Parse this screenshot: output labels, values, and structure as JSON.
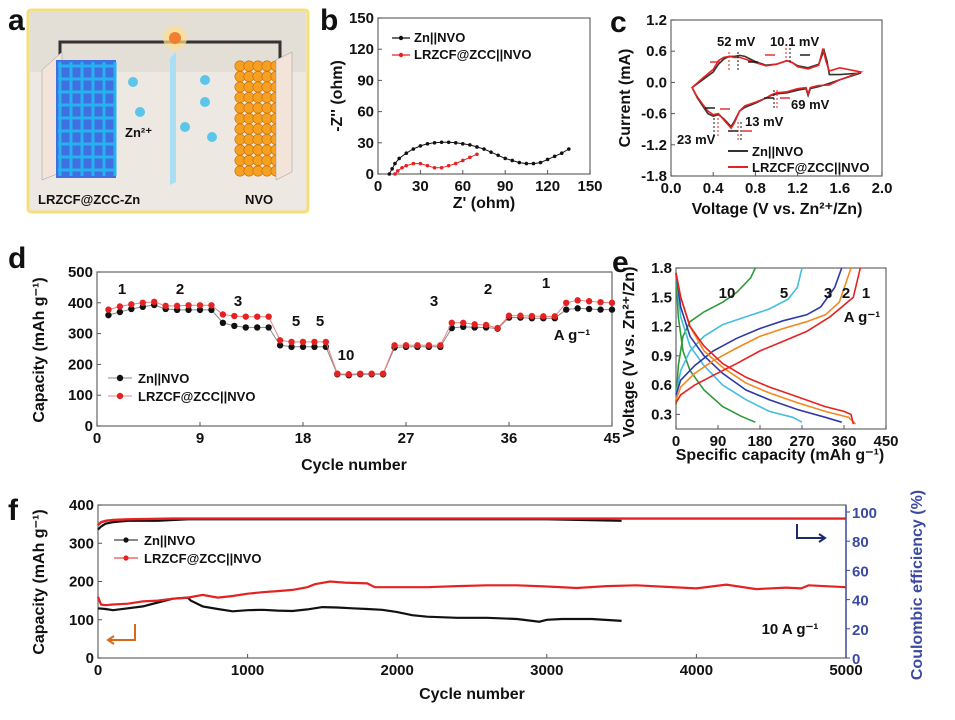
{
  "figure": {
    "panels": [
      "a",
      "b",
      "c",
      "d",
      "e",
      "f"
    ]
  },
  "panel_a": {
    "letter": "a",
    "left_label": "LRZCF@ZCC-Zn",
    "right_label": "NVO",
    "ion_label": "Zn²⁺",
    "colors": {
      "anode": "#3a6fd8",
      "cathode": "#f5a020",
      "background": "#efeae4",
      "border": "#f5e38a"
    }
  },
  "chart_data": [
    {
      "id": "b",
      "letter": "b",
      "type": "scatter",
      "title": "",
      "xlabel": "Z' (ohm)",
      "ylabel": "-Z'' (ohm)",
      "xlim": [
        0,
        150
      ],
      "ylim": [
        0,
        150
      ],
      "xticks": [
        "0",
        "30",
        "60",
        "90",
        "120",
        "150"
      ],
      "yticks": [
        "0",
        "30",
        "60",
        "90",
        "120",
        "150"
      ],
      "legend_position": "top-left",
      "series": [
        {
          "name": "Zn||NVO",
          "color": "#111111",
          "x": [
            8,
            10,
            12,
            15,
            20,
            25,
            30,
            35,
            40,
            45,
            50,
            55,
            60,
            65,
            70,
            75,
            80,
            85,
            90,
            95,
            100,
            105,
            110,
            115,
            120,
            125,
            130,
            135
          ],
          "y": [
            0,
            5,
            10,
            15,
            20,
            24,
            27,
            29,
            30,
            30.5,
            30.5,
            30,
            29,
            28,
            26,
            24,
            21,
            18,
            15,
            13,
            11,
            10,
            10,
            11,
            14,
            17,
            20,
            24
          ]
        },
        {
          "name": "LRZCF@ZCC||NVO",
          "color": "#e52222",
          "x": [
            12,
            14,
            17,
            20,
            25,
            30,
            35,
            40,
            45,
            50,
            55,
            60,
            65,
            70
          ],
          "y": [
            0,
            3,
            6,
            8,
            10,
            10,
            8,
            6,
            6,
            8,
            10,
            13,
            16,
            19
          ]
        }
      ]
    },
    {
      "id": "c",
      "letter": "c",
      "type": "line",
      "xlabel": "Voltage (V vs. Zn²⁺/Zn)",
      "ylabel": "Current (mA)",
      "xlim": [
        0.0,
        2.0
      ],
      "ylim": [
        -1.8,
        1.2
      ],
      "xticks": [
        "0.0",
        "0.4",
        "0.8",
        "1.2",
        "1.6",
        "2.0"
      ],
      "yticks": [
        "-1.8",
        "-1.2",
        "-0.6",
        "0.0",
        "0.6",
        "1.2"
      ],
      "legend_position": "bottom-center",
      "annotations": [
        "52 mV",
        "10.1 mV",
        "69 mV",
        "13 mV",
        "23 mV"
      ],
      "series": [
        {
          "name": "Zn||NVO",
          "color": "#333333",
          "x": [
            0.2,
            0.3,
            0.4,
            0.45,
            0.5,
            0.55,
            0.6,
            0.65,
            0.7,
            0.8,
            0.9,
            1.0,
            1.1,
            1.15,
            1.2,
            1.3,
            1.4,
            1.45,
            1.48,
            1.5,
            1.6,
            1.8,
            1.6,
            1.5,
            1.4,
            1.32,
            1.3,
            1.28,
            1.2,
            1.1,
            1.0,
            0.95,
            0.9,
            0.8,
            0.7,
            0.65,
            0.6,
            0.57,
            0.5,
            0.45,
            0.4,
            0.35,
            0.3,
            0.25,
            0.2
          ],
          "y": [
            -0.1,
            0.05,
            0.2,
            0.35,
            0.45,
            0.5,
            0.5,
            0.52,
            0.5,
            0.4,
            0.33,
            0.35,
            0.42,
            0.38,
            0.32,
            0.28,
            0.35,
            0.62,
            0.4,
            0.15,
            0.15,
            0.18,
            0.05,
            -0.02,
            -0.08,
            -0.12,
            -0.25,
            -0.12,
            -0.15,
            -0.2,
            -0.22,
            -0.25,
            -0.3,
            -0.4,
            -0.48,
            -0.55,
            -0.75,
            -0.85,
            -0.7,
            -0.62,
            -0.65,
            -0.6,
            -0.45,
            -0.3,
            -0.1
          ]
        },
        {
          "name": "LRZCF@ZCC||NVO",
          "color": "#e52222",
          "x": [
            0.2,
            0.3,
            0.4,
            0.45,
            0.5,
            0.55,
            0.6,
            0.65,
            0.7,
            0.8,
            0.9,
            1.0,
            1.1,
            1.15,
            1.2,
            1.3,
            1.4,
            1.44,
            1.47,
            1.5,
            1.6,
            1.8,
            1.6,
            1.5,
            1.4,
            1.32,
            1.3,
            1.28,
            1.2,
            1.1,
            1.0,
            0.95,
            0.9,
            0.8,
            0.7,
            0.65,
            0.6,
            0.57,
            0.5,
            0.45,
            0.4,
            0.35,
            0.3,
            0.25,
            0.2
          ],
          "y": [
            -0.1,
            0.08,
            0.25,
            0.42,
            0.48,
            0.5,
            0.48,
            0.48,
            0.45,
            0.38,
            0.32,
            0.35,
            0.42,
            0.38,
            0.3,
            0.26,
            0.33,
            0.65,
            0.4,
            0.22,
            0.28,
            0.2,
            0.05,
            -0.05,
            -0.06,
            -0.1,
            -0.22,
            -0.1,
            -0.12,
            -0.18,
            -0.2,
            -0.24,
            -0.3,
            -0.38,
            -0.45,
            -0.55,
            -0.78,
            -0.88,
            -0.72,
            -0.6,
            -0.62,
            -0.55,
            -0.42,
            -0.28,
            -0.1
          ]
        }
      ]
    },
    {
      "id": "d",
      "letter": "d",
      "type": "line",
      "xlabel": "Cycle number",
      "ylabel": "Capacity (mAh g⁻¹)",
      "xlim": [
        0,
        45
      ],
      "ylim": [
        0,
        500
      ],
      "xticks": [
        "0",
        "9",
        "18",
        "27",
        "36",
        "45"
      ],
      "yticks": [
        "0",
        "100",
        "200",
        "300",
        "400",
        "500"
      ],
      "legend_position": "bottom-left",
      "rate_labels": [
        "1",
        "2",
        "3",
        "5",
        "10",
        "5",
        "3",
        "2",
        "1"
      ],
      "unit_label": "A g⁻¹",
      "x": [
        1,
        2,
        3,
        4,
        5,
        6,
        7,
        8,
        9,
        10,
        11,
        12,
        13,
        14,
        15,
        16,
        17,
        18,
        19,
        20,
        21,
        22,
        23,
        24,
        25,
        26,
        27,
        28,
        29,
        30,
        31,
        32,
        33,
        34,
        35,
        36,
        37,
        38,
        39,
        40,
        41,
        42,
        43,
        44,
        45
      ],
      "series": [
        {
          "name": "Zn||NVO",
          "color": "#111111",
          "values": [
            360,
            370,
            380,
            387,
            393,
            380,
            377,
            377,
            377,
            377,
            335,
            325,
            320,
            320,
            320,
            262,
            257,
            257,
            257,
            257,
            168,
            165,
            168,
            168,
            168,
            255,
            257,
            257,
            257,
            257,
            318,
            322,
            320,
            320,
            316,
            352,
            352,
            350,
            350,
            350,
            378,
            382,
            380,
            378,
            378
          ]
        },
        {
          "name": "LRZCF@ZCC||NVO",
          "color": "#e52222",
          "values": [
            378,
            388,
            395,
            400,
            403,
            390,
            390,
            392,
            392,
            392,
            362,
            357,
            355,
            355,
            355,
            278,
            273,
            273,
            273,
            273,
            170,
            168,
            170,
            170,
            170,
            262,
            262,
            262,
            262,
            262,
            335,
            335,
            330,
            328,
            318,
            358,
            358,
            357,
            356,
            356,
            400,
            408,
            405,
            402,
            400
          ]
        }
      ]
    },
    {
      "id": "e",
      "letter": "e",
      "type": "line",
      "xlabel": "Specific capacity (mAh g⁻¹)",
      "ylabel": "Voltage (V vs. Zn²⁺/Zn)",
      "xlim": [
        0,
        450
      ],
      "ylim": [
        0.2,
        1.8
      ],
      "xticks": [
        "0",
        "90",
        "180",
        "270",
        "360",
        "450"
      ],
      "yticks": [
        "0.3",
        "0.6",
        "0.9",
        "1.2",
        "1.5",
        "1.8"
      ],
      "rate_labels": [
        "10",
        "5",
        "3",
        "2",
        "1"
      ],
      "unit_label": "A g⁻¹",
      "series": [
        {
          "name": "10",
          "color": "#2e9a3a",
          "charge_x": [
            0,
            5,
            15,
            30,
            60,
            100,
            130,
            160,
            170
          ],
          "charge_y": [
            0.4,
            0.8,
            1.1,
            1.25,
            1.35,
            1.45,
            1.55,
            1.7,
            1.8
          ],
          "discharge_x": [
            0,
            5,
            15,
            30,
            60,
            100,
            140,
            170
          ],
          "discharge_y": [
            1.75,
            1.3,
            0.95,
            0.75,
            0.55,
            0.38,
            0.28,
            0.22
          ]
        },
        {
          "name": "5",
          "color": "#45bde0",
          "charge_x": [
            0,
            10,
            30,
            60,
            100,
            150,
            200,
            240,
            260,
            270
          ],
          "charge_y": [
            0.5,
            0.75,
            0.95,
            1.1,
            1.22,
            1.3,
            1.38,
            1.48,
            1.6,
            1.8
          ],
          "discharge_x": [
            0,
            10,
            30,
            60,
            100,
            150,
            200,
            250,
            270
          ],
          "discharge_y": [
            1.75,
            1.3,
            1.0,
            0.8,
            0.6,
            0.45,
            0.33,
            0.27,
            0.22
          ]
        },
        {
          "name": "3",
          "color": "#2d3aa6",
          "charge_x": [
            0,
            10,
            40,
            80,
            130,
            180,
            230,
            280,
            310,
            340,
            355
          ],
          "charge_y": [
            0.5,
            0.65,
            0.8,
            0.95,
            1.08,
            1.18,
            1.26,
            1.32,
            1.4,
            1.6,
            1.8
          ],
          "discharge_x": [
            0,
            10,
            30,
            60,
            100,
            150,
            200,
            260,
            320,
            355
          ],
          "discharge_y": [
            1.75,
            1.4,
            1.1,
            0.9,
            0.72,
            0.55,
            0.45,
            0.35,
            0.27,
            0.22
          ]
        },
        {
          "name": "2",
          "color": "#f28a20",
          "charge_x": [
            0,
            10,
            40,
            80,
            130,
            180,
            230,
            280,
            320,
            350,
            375
          ],
          "charge_y": [
            0.45,
            0.58,
            0.72,
            0.85,
            0.98,
            1.1,
            1.18,
            1.25,
            1.32,
            1.45,
            1.8
          ],
          "discharge_x": [
            0,
            10,
            30,
            60,
            100,
            150,
            200,
            260,
            320,
            370,
            385
          ],
          "discharge_y": [
            1.75,
            1.5,
            1.2,
            0.95,
            0.78,
            0.62,
            0.52,
            0.42,
            0.33,
            0.27,
            0.2
          ]
        },
        {
          "name": "1",
          "color": "#e52222",
          "charge_x": [
            0,
            10,
            40,
            80,
            130,
            180,
            230,
            280,
            330,
            360,
            380,
            395
          ],
          "charge_y": [
            0.42,
            0.5,
            0.6,
            0.7,
            0.82,
            0.95,
            1.05,
            1.15,
            1.3,
            1.42,
            1.5,
            1.8
          ],
          "discharge_x": [
            0,
            10,
            30,
            60,
            100,
            150,
            200,
            260,
            320,
            360,
            375,
            380
          ],
          "discharge_y": [
            1.75,
            1.5,
            1.2,
            1.0,
            0.82,
            0.68,
            0.58,
            0.48,
            0.38,
            0.33,
            0.3,
            0.2
          ]
        }
      ]
    },
    {
      "id": "f",
      "letter": "f",
      "type": "line",
      "xlabel": "Cycle number",
      "ylabel": "Capacity (mAh g⁻¹)",
      "y2label": "Coulombic efficiency (%)",
      "xlim": [
        0,
        5000
      ],
      "ylim": [
        0,
        400
      ],
      "y2lim": [
        0,
        100
      ],
      "xticks": [
        "0",
        "1000",
        "2000",
        "3000",
        "4000",
        "5000"
      ],
      "yticks": [
        "0",
        "100",
        "200",
        "300",
        "400"
      ],
      "y2ticks": [
        "0",
        "20",
        "40",
        "60",
        "80",
        "100"
      ],
      "legend_position": "top-left",
      "annotation": "10 A g⁻¹",
      "axis_colors": {
        "left": "#111111",
        "right": "#3b4aa0",
        "left_arrow": "#d66a1a",
        "right_arrow": "#1d2a6e"
      },
      "series": [
        {
          "name": "Zn||NVO capacity",
          "color": "#111111",
          "x": [
            0,
            50,
            100,
            200,
            300,
            400,
            500,
            600,
            620,
            700,
            800,
            900,
            1000,
            1100,
            1200,
            1300,
            1400,
            1500,
            1600,
            1700,
            1800,
            1900,
            2000,
            2100,
            2200,
            2400,
            2600,
            2800,
            2950,
            3000,
            3100,
            3300,
            3500
          ],
          "y": [
            130,
            128,
            125,
            130,
            135,
            145,
            155,
            158,
            150,
            135,
            128,
            122,
            125,
            126,
            124,
            123,
            127,
            133,
            132,
            130,
            128,
            126,
            120,
            112,
            108,
            105,
            105,
            102,
            95,
            100,
            102,
            102,
            97
          ]
        },
        {
          "name": "LRZCF@ZCC||NVO capacity",
          "color": "#e52222",
          "x": [
            0,
            20,
            50,
            100,
            200,
            300,
            400,
            500,
            600,
            700,
            800,
            900,
            1000,
            1100,
            1200,
            1300,
            1400,
            1450,
            1550,
            1650,
            1800,
            1850,
            2000,
            2200,
            2400,
            2600,
            2800,
            3000,
            3200,
            3400,
            3600,
            3800,
            4000,
            4200,
            4400,
            4600,
            4700,
            4750,
            5000
          ],
          "y": [
            160,
            140,
            138,
            140,
            142,
            148,
            150,
            155,
            158,
            165,
            158,
            162,
            168,
            172,
            175,
            178,
            185,
            193,
            200,
            197,
            195,
            185,
            185,
            185,
            188,
            190,
            190,
            187,
            183,
            188,
            190,
            186,
            182,
            192,
            180,
            184,
            182,
            190,
            185
          ]
        },
        {
          "name": "Zn||NVO CE",
          "color": "#111111",
          "x": [
            0,
            20,
            50,
            100,
            200,
            400,
            600,
            1000,
            2000,
            3000,
            3500
          ],
          "y": [
            88,
            90,
            92,
            93,
            94,
            94,
            95,
            95,
            95,
            95,
            94
          ]
        },
        {
          "name": "LRZCF@ZCC||NVO CE",
          "color": "#e52222",
          "x": [
            0,
            20,
            50,
            100,
            200,
            500,
            1000,
            2000,
            3000,
            4000,
            5000
          ],
          "y": [
            91,
            93,
            94,
            94.5,
            95,
            95.5,
            95.5,
            95.5,
            95.5,
            95.5,
            95.5
          ]
        }
      ]
    }
  ]
}
